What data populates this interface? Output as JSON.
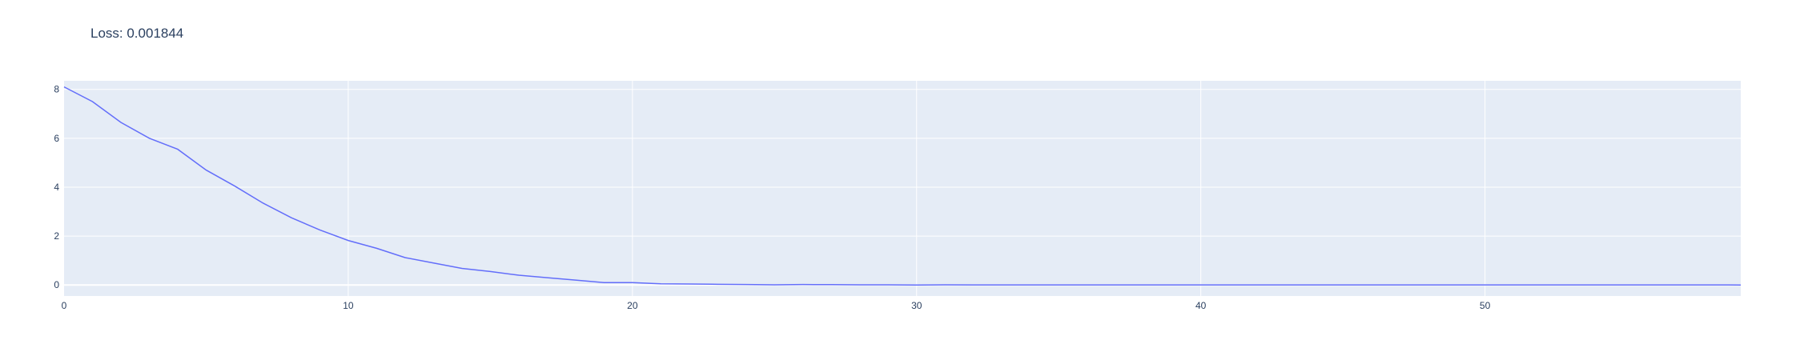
{
  "title": "Loss: 0.001844",
  "colors": {
    "plot_bg": "#e5ecf6",
    "grid": "#ffffff",
    "line": "#636efa",
    "text": "#2a3f5f"
  },
  "chart_data": {
    "type": "line",
    "title": "Loss: 0.001844",
    "xlabel": "",
    "ylabel": "",
    "xlim": [
      0,
      59
    ],
    "ylim": [
      -0.45,
      8.35
    ],
    "grid": true,
    "legend": "none",
    "x_ticks": [
      0,
      10,
      20,
      30,
      40,
      50
    ],
    "y_ticks": [
      0,
      2,
      4,
      6,
      8
    ],
    "series": [
      {
        "x": [
          0,
          1,
          2,
          3,
          4,
          5,
          6,
          7,
          8,
          9,
          10,
          11,
          12,
          13,
          14,
          15,
          16,
          17,
          18,
          19,
          20,
          21,
          22,
          23,
          24,
          25,
          26,
          27,
          28,
          29,
          30,
          31,
          32,
          33,
          34,
          35,
          36,
          37,
          38,
          39,
          40,
          41,
          42,
          43,
          44,
          45,
          46,
          47,
          48,
          49,
          50,
          51,
          52,
          53,
          54,
          55,
          56,
          57,
          58,
          59
        ],
        "y": [
          8.1,
          7.5,
          6.65,
          6.0,
          5.55,
          4.7,
          4.05,
          3.35,
          2.75,
          2.25,
          1.82,
          1.5,
          1.12,
          0.9,
          0.68,
          0.55,
          0.4,
          0.3,
          0.2,
          0.1,
          0.1,
          0.05,
          0.04,
          0.03,
          0.02,
          0.01,
          0.02,
          0.015,
          0.01,
          0.008,
          0.0,
          0.01,
          0.005,
          0.003,
          0.002,
          0.002,
          0.002,
          0.002,
          0.002,
          0.002,
          0.002,
          0.002,
          0.002,
          0.002,
          0.002,
          0.002,
          0.002,
          0.002,
          0.002,
          0.002,
          0.002,
          0.002,
          0.002,
          0.002,
          0.002,
          0.002,
          0.002,
          0.002,
          0.002,
          0.001844
        ]
      }
    ]
  }
}
